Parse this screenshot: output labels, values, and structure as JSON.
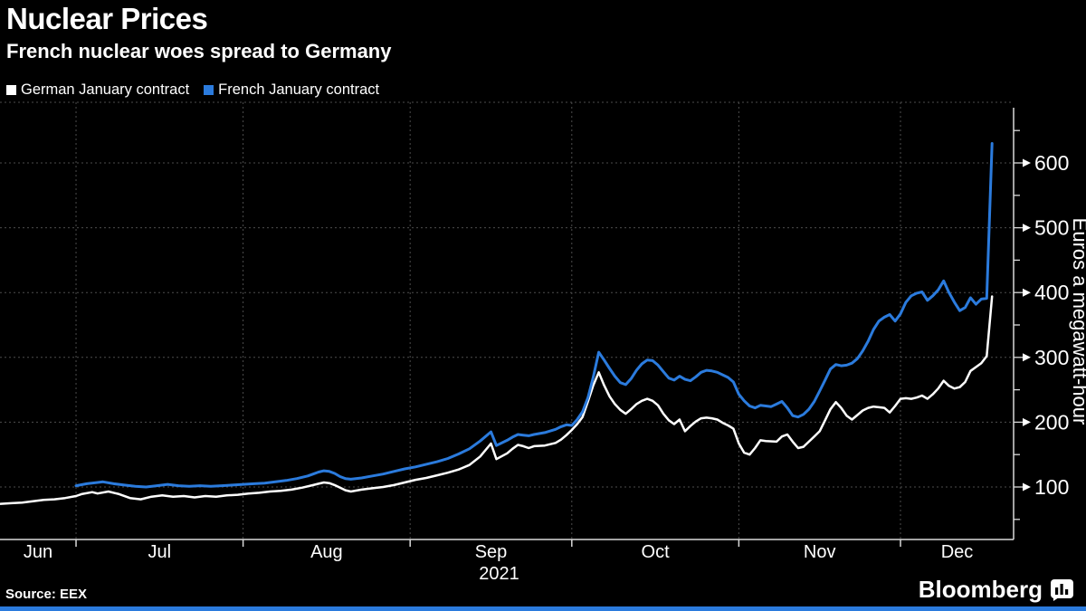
{
  "header": {
    "title": "Nuclear Prices",
    "subtitle": "French nuclear woes spread to Germany"
  },
  "legend": {
    "items": [
      {
        "label": "German January contract",
        "color": "#ffffff"
      },
      {
        "label": "French January contract",
        "color": "#2b7bdd"
      }
    ]
  },
  "footer": {
    "source": "Source: EEX",
    "brand": "Bloomberg"
  },
  "colors": {
    "background": "#000000",
    "accent_blue": "#2b7bdd",
    "grid": "#4d4d4d",
    "axis": "#d9d9d9",
    "text": "#ffffff"
  },
  "chart_data": {
    "type": "line",
    "title": "Nuclear Prices",
    "subtitle": "French nuclear woes spread to Germany",
    "ylabel": "Euros a megawatt-hour",
    "xlabel": "",
    "grid": "dotted",
    "legend_position": "top-left",
    "x_axis": {
      "months": [
        "Jun",
        "Jul",
        "Aug",
        "Sep",
        "Oct",
        "Nov",
        "Dec"
      ],
      "year_label": "2021",
      "start": "2021-06-17",
      "end": "2021-12-22"
    },
    "y_axis": {
      "min": 20,
      "max": 685,
      "major_ticks": [
        100,
        200,
        300,
        400,
        500,
        600
      ],
      "minor_tick_step": 50,
      "unit": "EUR/MWh"
    },
    "series": [
      {
        "name": "German January contract",
        "color": "#ffffff",
        "points": [
          [
            "2021-06-17",
            74
          ],
          [
            "2021-06-19",
            75
          ],
          [
            "2021-06-21",
            76
          ],
          [
            "2021-06-23",
            78
          ],
          [
            "2021-06-25",
            80
          ],
          [
            "2021-06-27",
            81
          ],
          [
            "2021-06-29",
            83
          ],
          [
            "2021-07-01",
            86
          ],
          [
            "2021-07-02",
            89
          ],
          [
            "2021-07-04",
            92
          ],
          [
            "2021-07-05",
            90
          ],
          [
            "2021-07-07",
            93
          ],
          [
            "2021-07-09",
            89
          ],
          [
            "2021-07-11",
            83
          ],
          [
            "2021-07-13",
            81
          ],
          [
            "2021-07-15",
            85
          ],
          [
            "2021-07-17",
            87
          ],
          [
            "2021-07-19",
            85
          ],
          [
            "2021-07-21",
            86
          ],
          [
            "2021-07-23",
            84
          ],
          [
            "2021-07-25",
            86
          ],
          [
            "2021-07-27",
            85
          ],
          [
            "2021-07-29",
            87
          ],
          [
            "2021-07-31",
            88
          ],
          [
            "2021-08-02",
            90
          ],
          [
            "2021-08-04",
            91
          ],
          [
            "2021-08-06",
            93
          ],
          [
            "2021-08-08",
            94
          ],
          [
            "2021-08-10",
            96
          ],
          [
            "2021-08-12",
            99
          ],
          [
            "2021-08-14",
            103
          ],
          [
            "2021-08-15",
            105
          ],
          [
            "2021-08-16",
            107
          ],
          [
            "2021-08-17",
            106
          ],
          [
            "2021-08-18",
            103
          ],
          [
            "2021-08-19",
            99
          ],
          [
            "2021-08-20",
            95
          ],
          [
            "2021-08-21",
            93
          ],
          [
            "2021-08-23",
            96
          ],
          [
            "2021-08-25",
            98
          ],
          [
            "2021-08-27",
            100
          ],
          [
            "2021-08-29",
            103
          ],
          [
            "2021-08-31",
            107
          ],
          [
            "2021-09-02",
            111
          ],
          [
            "2021-09-04",
            114
          ],
          [
            "2021-09-06",
            118
          ],
          [
            "2021-09-08",
            122
          ],
          [
            "2021-09-10",
            127
          ],
          [
            "2021-09-12",
            134
          ],
          [
            "2021-09-14",
            147
          ],
          [
            "2021-09-16",
            167
          ],
          [
            "2021-09-17",
            143
          ],
          [
            "2021-09-19",
            152
          ],
          [
            "2021-09-20",
            159
          ],
          [
            "2021-09-21",
            165
          ],
          [
            "2021-09-22",
            163
          ],
          [
            "2021-09-23",
            160
          ],
          [
            "2021-09-24",
            163
          ],
          [
            "2021-09-26",
            164
          ],
          [
            "2021-09-28",
            168
          ],
          [
            "2021-09-29",
            173
          ],
          [
            "2021-09-30",
            180
          ],
          [
            "2021-10-01",
            188
          ],
          [
            "2021-10-02",
            197
          ],
          [
            "2021-10-03",
            208
          ],
          [
            "2021-10-04",
            232
          ],
          [
            "2021-10-05",
            257
          ],
          [
            "2021-10-06",
            277
          ],
          [
            "2021-10-07",
            257
          ],
          [
            "2021-10-08",
            240
          ],
          [
            "2021-10-09",
            228
          ],
          [
            "2021-10-10",
            219
          ],
          [
            "2021-10-11",
            213
          ],
          [
            "2021-10-12",
            220
          ],
          [
            "2021-10-13",
            228
          ],
          [
            "2021-10-14",
            233
          ],
          [
            "2021-10-15",
            236
          ],
          [
            "2021-10-16",
            233
          ],
          [
            "2021-10-17",
            226
          ],
          [
            "2021-10-18",
            213
          ],
          [
            "2021-10-19",
            203
          ],
          [
            "2021-10-20",
            197
          ],
          [
            "2021-10-21",
            204
          ],
          [
            "2021-10-22",
            186
          ],
          [
            "2021-10-23",
            194
          ],
          [
            "2021-10-24",
            201
          ],
          [
            "2021-10-25",
            206
          ],
          [
            "2021-10-26",
            207
          ],
          [
            "2021-10-27",
            206
          ],
          [
            "2021-10-28",
            204
          ],
          [
            "2021-10-29",
            199
          ],
          [
            "2021-10-30",
            195
          ],
          [
            "2021-10-31",
            190
          ],
          [
            "2021-11-01",
            167
          ],
          [
            "2021-11-02",
            153
          ],
          [
            "2021-11-03",
            150
          ],
          [
            "2021-11-04",
            160
          ],
          [
            "2021-11-05",
            172
          ],
          [
            "2021-11-06",
            171
          ],
          [
            "2021-11-08",
            170
          ],
          [
            "2021-11-09",
            178
          ],
          [
            "2021-11-10",
            181
          ],
          [
            "2021-11-11",
            170
          ],
          [
            "2021-11-12",
            160
          ],
          [
            "2021-11-13",
            162
          ],
          [
            "2021-11-14",
            170
          ],
          [
            "2021-11-15",
            178
          ],
          [
            "2021-11-16",
            186
          ],
          [
            "2021-11-17",
            203
          ],
          [
            "2021-11-18",
            220
          ],
          [
            "2021-11-19",
            231
          ],
          [
            "2021-11-20",
            222
          ],
          [
            "2021-11-21",
            210
          ],
          [
            "2021-11-22",
            204
          ],
          [
            "2021-11-23",
            211
          ],
          [
            "2021-11-24",
            218
          ],
          [
            "2021-11-25",
            222
          ],
          [
            "2021-11-26",
            224
          ],
          [
            "2021-11-27",
            223
          ],
          [
            "2021-11-28",
            222
          ],
          [
            "2021-11-29",
            215
          ],
          [
            "2021-11-30",
            225
          ],
          [
            "2021-12-01",
            236
          ],
          [
            "2021-12-02",
            237
          ],
          [
            "2021-12-03",
            236
          ],
          [
            "2021-12-04",
            238
          ],
          [
            "2021-12-05",
            241
          ],
          [
            "2021-12-06",
            236
          ],
          [
            "2021-12-07",
            243
          ],
          [
            "2021-12-08",
            252
          ],
          [
            "2021-12-09",
            264
          ],
          [
            "2021-12-10",
            256
          ],
          [
            "2021-12-11",
            252
          ],
          [
            "2021-12-12",
            254
          ],
          [
            "2021-12-13",
            262
          ],
          [
            "2021-12-14",
            279
          ],
          [
            "2021-12-15",
            285
          ],
          [
            "2021-12-16",
            291
          ],
          [
            "2021-12-17",
            302
          ],
          [
            "2021-12-18",
            394
          ]
        ]
      },
      {
        "name": "French January contract",
        "color": "#2b7bdd",
        "points": [
          [
            "2021-07-01",
            102
          ],
          [
            "2021-07-03",
            105
          ],
          [
            "2021-07-05",
            107
          ],
          [
            "2021-07-06",
            108
          ],
          [
            "2021-07-08",
            105
          ],
          [
            "2021-07-10",
            103
          ],
          [
            "2021-07-12",
            101
          ],
          [
            "2021-07-14",
            100
          ],
          [
            "2021-07-16",
            102
          ],
          [
            "2021-07-18",
            104
          ],
          [
            "2021-07-20",
            102
          ],
          [
            "2021-07-22",
            101
          ],
          [
            "2021-07-24",
            102
          ],
          [
            "2021-07-26",
            101
          ],
          [
            "2021-07-28",
            102
          ],
          [
            "2021-07-30",
            103
          ],
          [
            "2021-08-01",
            104
          ],
          [
            "2021-08-03",
            105
          ],
          [
            "2021-08-05",
            106
          ],
          [
            "2021-08-07",
            108
          ],
          [
            "2021-08-09",
            110
          ],
          [
            "2021-08-11",
            113
          ],
          [
            "2021-08-13",
            117
          ],
          [
            "2021-08-14",
            120
          ],
          [
            "2021-08-15",
            123
          ],
          [
            "2021-08-16",
            125
          ],
          [
            "2021-08-17",
            124
          ],
          [
            "2021-08-18",
            121
          ],
          [
            "2021-08-19",
            116
          ],
          [
            "2021-08-20",
            113
          ],
          [
            "2021-08-21",
            112
          ],
          [
            "2021-08-23",
            114
          ],
          [
            "2021-08-25",
            117
          ],
          [
            "2021-08-27",
            120
          ],
          [
            "2021-08-29",
            124
          ],
          [
            "2021-08-31",
            128
          ],
          [
            "2021-09-02",
            131
          ],
          [
            "2021-09-04",
            135
          ],
          [
            "2021-09-06",
            139
          ],
          [
            "2021-09-08",
            144
          ],
          [
            "2021-09-10",
            151
          ],
          [
            "2021-09-12",
            159
          ],
          [
            "2021-09-14",
            171
          ],
          [
            "2021-09-16",
            185
          ],
          [
            "2021-09-17",
            164
          ],
          [
            "2021-09-19",
            172
          ],
          [
            "2021-09-20",
            177
          ],
          [
            "2021-09-21",
            181
          ],
          [
            "2021-09-22",
            180
          ],
          [
            "2021-09-23",
            179
          ],
          [
            "2021-09-24",
            181
          ],
          [
            "2021-09-26",
            184
          ],
          [
            "2021-09-28",
            189
          ],
          [
            "2021-09-29",
            193
          ],
          [
            "2021-09-30",
            196
          ],
          [
            "2021-10-01",
            195
          ],
          [
            "2021-10-02",
            204
          ],
          [
            "2021-10-03",
            216
          ],
          [
            "2021-10-04",
            238
          ],
          [
            "2021-10-05",
            270
          ],
          [
            "2021-10-06",
            308
          ],
          [
            "2021-10-07",
            296
          ],
          [
            "2021-10-08",
            283
          ],
          [
            "2021-10-09",
            271
          ],
          [
            "2021-10-10",
            261
          ],
          [
            "2021-10-11",
            258
          ],
          [
            "2021-10-12",
            267
          ],
          [
            "2021-10-13",
            280
          ],
          [
            "2021-10-14",
            290
          ],
          [
            "2021-10-15",
            296
          ],
          [
            "2021-10-16",
            295
          ],
          [
            "2021-10-17",
            288
          ],
          [
            "2021-10-18",
            278
          ],
          [
            "2021-10-19",
            268
          ],
          [
            "2021-10-20",
            265
          ],
          [
            "2021-10-21",
            271
          ],
          [
            "2021-10-22",
            266
          ],
          [
            "2021-10-23",
            264
          ],
          [
            "2021-10-24",
            270
          ],
          [
            "2021-10-25",
            277
          ],
          [
            "2021-10-26",
            280
          ],
          [
            "2021-10-27",
            279
          ],
          [
            "2021-10-28",
            277
          ],
          [
            "2021-10-29",
            273
          ],
          [
            "2021-10-30",
            269
          ],
          [
            "2021-10-31",
            262
          ],
          [
            "2021-11-01",
            243
          ],
          [
            "2021-11-02",
            233
          ],
          [
            "2021-11-03",
            225
          ],
          [
            "2021-11-04",
            222
          ],
          [
            "2021-11-05",
            226
          ],
          [
            "2021-11-06",
            225
          ],
          [
            "2021-11-07",
            224
          ],
          [
            "2021-11-08",
            228
          ],
          [
            "2021-11-09",
            232
          ],
          [
            "2021-11-10",
            222
          ],
          [
            "2021-11-11",
            210
          ],
          [
            "2021-11-12",
            208
          ],
          [
            "2021-11-13",
            212
          ],
          [
            "2021-11-14",
            220
          ],
          [
            "2021-11-15",
            232
          ],
          [
            "2021-11-16",
            248
          ],
          [
            "2021-11-17",
            265
          ],
          [
            "2021-11-18",
            282
          ],
          [
            "2021-11-19",
            289
          ],
          [
            "2021-11-20",
            287
          ],
          [
            "2021-11-21",
            288
          ],
          [
            "2021-11-22",
            291
          ],
          [
            "2021-11-23",
            298
          ],
          [
            "2021-11-24",
            310
          ],
          [
            "2021-11-25",
            325
          ],
          [
            "2021-11-26",
            343
          ],
          [
            "2021-11-27",
            356
          ],
          [
            "2021-11-28",
            362
          ],
          [
            "2021-11-29",
            366
          ],
          [
            "2021-11-30",
            356
          ],
          [
            "2021-12-01",
            367
          ],
          [
            "2021-12-02",
            385
          ],
          [
            "2021-12-03",
            395
          ],
          [
            "2021-12-04",
            399
          ],
          [
            "2021-12-05",
            401
          ],
          [
            "2021-12-06",
            388
          ],
          [
            "2021-12-07",
            395
          ],
          [
            "2021-12-08",
            404
          ],
          [
            "2021-12-09",
            418
          ],
          [
            "2021-12-10",
            400
          ],
          [
            "2021-12-11",
            385
          ],
          [
            "2021-12-12",
            372
          ],
          [
            "2021-12-13",
            377
          ],
          [
            "2021-12-14",
            392
          ],
          [
            "2021-12-15",
            382
          ],
          [
            "2021-12-16",
            390
          ],
          [
            "2021-12-17",
            391
          ],
          [
            "2021-12-18",
            630
          ]
        ]
      }
    ]
  }
}
